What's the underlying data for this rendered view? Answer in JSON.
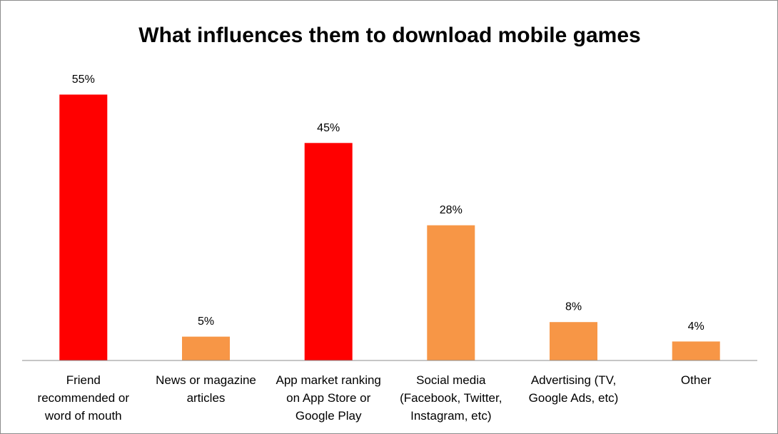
{
  "chart_data": {
    "type": "bar",
    "title": "What influences them to download mobile games",
    "categories": [
      "Friend recommended or word of mouth",
      "News or magazine articles",
      "App market ranking on App Store or Google Play",
      "Social media (Facebook, Twitter, Instagram, etc)",
      "Advertising (TV, Google Ads, etc)",
      "Other"
    ],
    "category_lines": [
      [
        "Friend",
        "recommended or",
        "word of mouth"
      ],
      [
        "News or magazine",
        "articles"
      ],
      [
        "App market ranking",
        "on App Store or",
        "Google Play"
      ],
      [
        "Social media",
        "(Facebook, Twitter,",
        "Instagram, etc)"
      ],
      [
        "Advertising (TV,",
        "Google Ads, etc)"
      ],
      [
        "Other"
      ]
    ],
    "values": [
      55,
      5,
      45,
      28,
      8,
      4
    ],
    "data_labels": [
      "55%",
      "5%",
      "45%",
      "28%",
      "8%",
      "4%"
    ],
    "bar_colors": [
      "#ff0000",
      "#f79646",
      "#ff0000",
      "#f79646",
      "#f79646",
      "#f79646"
    ],
    "ylim": [
      0,
      55
    ],
    "xlabel": "",
    "ylabel": "",
    "grid": false,
    "legend": "none"
  }
}
